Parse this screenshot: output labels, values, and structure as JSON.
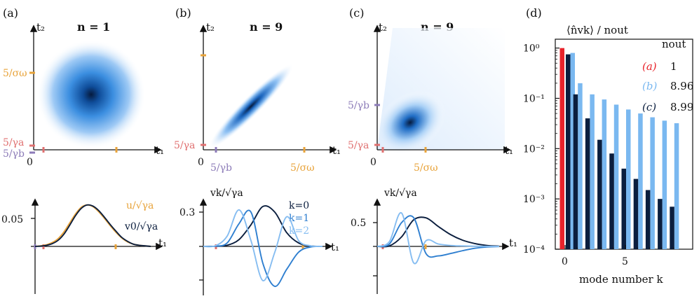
{
  "colors": {
    "orange": "#E8A33A",
    "purple": "#8C7BB8",
    "salmon": "#E07070",
    "red": "#E8232B",
    "dark_navy": "#0B1E3E",
    "light_blue": "#7AB8F0",
    "mid_blue": "#2F7FD0",
    "paler_blue": "#86BDF1"
  },
  "panels": {
    "a": {
      "label": "(a)",
      "title": "n = 1",
      "y_axis_var": "t₂",
      "x_axis_var": "t₁",
      "ticks": {
        "sigma_omega": "5/σω",
        "gamma_a": "5/γa",
        "gamma_b": "5/γb",
        "zero": "0"
      },
      "lower": {
        "ytick": "0.05",
        "x_axis_var": "t₁",
        "legend_u": "u/√γa",
        "legend_v0": "v0/√γa"
      }
    },
    "b": {
      "label": "(b)",
      "title": "n = 9",
      "y_axis_var": "t₂",
      "x_axis_var": "t₁",
      "ticks": {
        "sigma_omega": "5/σω",
        "gamma_a": "5/γa",
        "gamma_b": "5/γb",
        "zero": "0"
      },
      "lower": {
        "ytick": "0.3",
        "x_axis_var": "t₁",
        "ylabel": "vk/√γa",
        "legend": [
          "k=0",
          "k=1",
          "k=2"
        ]
      }
    },
    "c": {
      "label": "(c)",
      "title": "n = 9",
      "y_axis_var": "t₂",
      "x_axis_var": "t₁",
      "ticks": {
        "sigma_omega": "5/σω",
        "gamma_a": "5/γa",
        "gamma_b": "5/γb",
        "zero": "0"
      },
      "lower": {
        "ytick": "0.5",
        "x_axis_var": "t₁",
        "ylabel": "vk/√γa"
      }
    },
    "d": {
      "label": "(d)",
      "ylabel": "⟨n̂vk⟩ / nout",
      "legend_title": "nout",
      "legend": [
        {
          "label": "(a)",
          "value": "1"
        },
        {
          "label": "(b)",
          "value": "8.96"
        },
        {
          "label": "(c)",
          "value": "8.99"
        }
      ]
    }
  },
  "chart_data": [
    {
      "type": "line",
      "title": "n = 1",
      "xlabel": "t₁",
      "yticks": [
        "0.05"
      ],
      "series": [
        {
          "name": "u/√γa",
          "x": [
            0,
            1,
            2,
            3,
            4,
            5,
            6,
            7,
            8,
            9,
            10,
            11,
            12,
            13,
            14,
            15,
            16,
            17,
            18,
            19,
            20
          ],
          "values": [
            0,
            0.001,
            0.003,
            0.007,
            0.014,
            0.026,
            0.042,
            0.058,
            0.07,
            0.074,
            0.071,
            0.062,
            0.05,
            0.037,
            0.025,
            0.015,
            0.008,
            0.004,
            0.002,
            0.001,
            0
          ]
        },
        {
          "name": "v0/√γa",
          "x": [
            0,
            1,
            2,
            3,
            4,
            5,
            6,
            7,
            8,
            9,
            10,
            11,
            12,
            13,
            14,
            15,
            16,
            17,
            18,
            19,
            20
          ],
          "values": [
            0,
            0.0005,
            0.002,
            0.005,
            0.011,
            0.022,
            0.038,
            0.055,
            0.068,
            0.074,
            0.072,
            0.064,
            0.052,
            0.039,
            0.027,
            0.016,
            0.009,
            0.004,
            0.002,
            0.001,
            0
          ]
        }
      ]
    },
    {
      "type": "line",
      "title": "n = 9",
      "xlabel": "t₁",
      "ylabel": "vk/√γa",
      "yticks": [
        "0.3"
      ],
      "series": [
        {
          "name": "k=0",
          "x": [
            0,
            2,
            4,
            6,
            8,
            10,
            12,
            14,
            16,
            18,
            20
          ],
          "values": [
            0,
            0.001,
            0.01,
            0.06,
            0.19,
            0.35,
            0.3,
            0.12,
            0.03,
            0.004,
            0
          ]
        },
        {
          "name": "k=1",
          "x": [
            0,
            2,
            4,
            6,
            8,
            10,
            12,
            14,
            16,
            18,
            20
          ],
          "values": [
            0,
            0.002,
            0.03,
            0.2,
            0.3,
            -0.15,
            -0.35,
            -0.2,
            -0.05,
            -0.005,
            0
          ]
        },
        {
          "name": "k=2",
          "x": [
            0,
            2,
            4,
            6,
            8,
            10,
            12,
            14,
            16,
            18,
            20
          ],
          "values": [
            0,
            0.005,
            0.09,
            0.32,
            0.05,
            -0.3,
            -0.05,
            0.26,
            0.05,
            0.005,
            0
          ]
        }
      ]
    },
    {
      "type": "line",
      "title": "n = 9",
      "xlabel": "t₁",
      "ylabel": "vk/√γa",
      "yticks": [
        "0.5"
      ],
      "series": [
        {
          "name": "k=0",
          "x": [
            0,
            2,
            4,
            6,
            8,
            10,
            12,
            14,
            16,
            18,
            20
          ],
          "values": [
            0,
            0.01,
            0.2,
            0.56,
            0.6,
            0.42,
            0.25,
            0.13,
            0.06,
            0.02,
            0.005
          ]
        },
        {
          "name": "k=1",
          "x": [
            0,
            2,
            4,
            6,
            8,
            10,
            12,
            14,
            16,
            18,
            20
          ],
          "values": [
            0,
            0.05,
            0.5,
            0.6,
            -0.15,
            -0.2,
            -0.15,
            -0.09,
            -0.04,
            -0.012,
            -0.003
          ]
        },
        {
          "name": "k=2",
          "x": [
            0,
            2,
            4,
            6,
            8,
            10,
            12,
            14,
            16,
            18,
            20
          ],
          "values": [
            0,
            0.1,
            0.7,
            -0.35,
            0.12,
            0.05,
            0.02,
            0.01,
            0.004,
            0.001,
            0
          ]
        }
      ]
    },
    {
      "type": "bar",
      "ylabel": "⟨n̂vk⟩ / nout",
      "xlabel": "mode number k",
      "yscale": "log",
      "ylim": [
        0.0001,
        1.5
      ],
      "yticks": [
        "10⁰",
        "10⁻¹",
        "10⁻²",
        "10⁻³",
        "10⁻⁴"
      ],
      "xticks": [
        "0",
        "5"
      ],
      "categories": [
        0,
        1,
        2,
        3,
        4,
        5,
        6,
        7,
        8,
        9
      ],
      "series": [
        {
          "name": "(a)",
          "values": [
            1.0,
            null,
            null,
            null,
            null,
            null,
            null,
            null,
            null,
            null
          ]
        },
        {
          "name": "(b)",
          "values": [
            0.8,
            0.2,
            0.12,
            0.095,
            0.075,
            0.06,
            0.05,
            0.042,
            0.036,
            0.032
          ]
        },
        {
          "name": "(c)",
          "values": [
            0.75,
            0.12,
            0.04,
            0.015,
            0.008,
            0.004,
            0.0025,
            0.0015,
            0.001,
            0.0007
          ]
        }
      ]
    }
  ]
}
